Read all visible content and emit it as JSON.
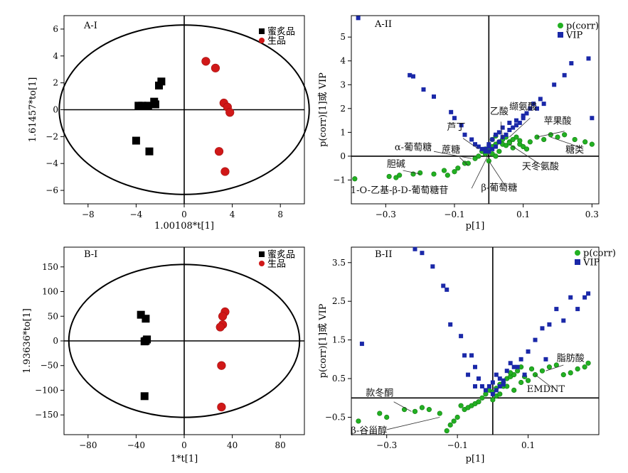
{
  "colors": {
    "honey": "#000000",
    "raw": "#d01818",
    "pcorr": "#22b022",
    "vip": "#1a28a8",
    "ellipse": "#000000",
    "axis": "#000000"
  },
  "chart_data": [
    {
      "id": "A-I",
      "type": "scatter",
      "panel_label": "A-I",
      "xlabel": "1.00108*t[1]",
      "ylabel": "1.61457*to[1]",
      "xlim": [
        -10,
        10
      ],
      "ylim": [
        -7,
        7
      ],
      "xticks": [
        -8,
        -4,
        0,
        4,
        8
      ],
      "yticks": [
        -6,
        -4,
        -2,
        0,
        2,
        4,
        6
      ],
      "xtick_labels": [
        "−8",
        "−4",
        "0",
        "4",
        "8"
      ],
      "ytick_labels": [
        "−6",
        "−4",
        "−2",
        "0",
        "2",
        "4",
        "6"
      ],
      "ellipse": {
        "rx": 10.4,
        "ry": 6.3
      },
      "legend_position": "top-right",
      "series": [
        {
          "name": "蜜炙品",
          "marker": "square",
          "color": "#000000",
          "x": [
            -3.8,
            -3.5,
            -2.1,
            -1.9,
            -2.9,
            -4.0,
            -3.0,
            -2.4,
            -2.5
          ],
          "y": [
            0.3,
            0.3,
            1.8,
            2.1,
            -3.1,
            -2.3,
            0.3,
            0.4,
            0.6
          ]
        },
        {
          "name": "生品",
          "marker": "circle",
          "color": "#d01818",
          "x": [
            1.8,
            2.6,
            3.3,
            3.6,
            3.8,
            2.9,
            3.4
          ],
          "y": [
            3.6,
            3.1,
            0.5,
            0.2,
            -0.2,
            -3.1,
            -4.6
          ]
        }
      ]
    },
    {
      "id": "A-II",
      "type": "scatter",
      "panel_label": "A-II",
      "xlabel": "p[1]",
      "ylabel": "p(corr)[1]或 VIP",
      "xlim": [
        -0.4,
        0.32
      ],
      "ylim": [
        -2,
        5.9
      ],
      "xticks": [
        -0.3,
        -0.1,
        0.1,
        0.3
      ],
      "yticks": [
        -1,
        0,
        1,
        2,
        3,
        4,
        5
      ],
      "xtick_labels": [
        "−0.3",
        "−0.1",
        "0.1",
        "0.3"
      ],
      "ytick_labels": [
        "−1",
        "0",
        "1",
        "2",
        "3",
        "4",
        "5"
      ],
      "legend_position": "top-right",
      "series": [
        {
          "name": "p(corr)",
          "marker": "circle",
          "color": "#22b022",
          "x": [
            -0.39,
            -0.29,
            -0.27,
            -0.26,
            -0.22,
            -0.2,
            -0.16,
            -0.13,
            -0.12,
            -0.1,
            -0.09,
            -0.07,
            -0.06,
            -0.04,
            -0.03,
            -0.02,
            -0.01,
            0.0,
            0.01,
            0.02,
            0.03,
            0.04,
            0.05,
            0.06,
            0.07,
            0.08,
            0.09,
            0.1,
            0.12,
            0.14,
            0.16,
            0.18,
            0.2,
            0.22,
            0.25,
            0.28,
            0.3,
            0.0,
            0.01,
            0.02,
            0.03,
            0.04,
            0.01,
            0.02,
            -0.01,
            0.05,
            0.06,
            0.07,
            0.09,
            0.11
          ],
          "y": [
            -0.95,
            -0.85,
            -0.9,
            -0.8,
            -0.75,
            -0.7,
            -0.75,
            -0.6,
            -0.8,
            -0.65,
            -0.5,
            -0.3,
            -0.3,
            -0.1,
            0.0,
            0.2,
            0.3,
            0.3,
            0.4,
            0.5,
            0.6,
            0.7,
            0.8,
            0.6,
            0.7,
            0.8,
            0.5,
            0.4,
            0.6,
            0.8,
            0.7,
            0.9,
            0.8,
            0.9,
            0.7,
            0.6,
            0.5,
            -0.2,
            0.1,
            0.0,
            0.2,
            0.5,
            0.7,
            0.85,
            0.1,
            0.45,
            0.55,
            0.35,
            0.65,
            0.3
          ]
        },
        {
          "name": "VIP",
          "marker": "square",
          "color": "#1a28a8",
          "x": [
            -0.38,
            -0.23,
            -0.22,
            -0.19,
            -0.16,
            -0.11,
            -0.1,
            -0.08,
            -0.07,
            -0.05,
            -0.04,
            -0.03,
            -0.02,
            -0.01,
            0.0,
            0.01,
            0.02,
            0.03,
            0.04,
            0.05,
            0.06,
            0.07,
            0.08,
            0.09,
            0.1,
            0.11,
            0.12,
            0.13,
            0.15,
            0.16,
            0.19,
            0.22,
            0.24,
            0.29,
            0.3,
            0.0,
            0.01,
            0.02,
            0.03,
            -0.01,
            0.0,
            0.04,
            0.06,
            0.08,
            0.1,
            0.14
          ],
          "y": [
            5.8,
            3.4,
            3.35,
            2.8,
            2.5,
            1.85,
            1.6,
            1.3,
            0.9,
            0.7,
            0.5,
            0.4,
            0.3,
            0.2,
            0.2,
            0.3,
            0.4,
            0.6,
            0.8,
            0.9,
            1.1,
            1.2,
            1.3,
            1.4,
            1.6,
            1.8,
            2.0,
            2.2,
            2.4,
            2.2,
            3.0,
            3.4,
            3.9,
            4.1,
            1.6,
            0.5,
            0.7,
            0.9,
            1.0,
            0.3,
            0.4,
            1.2,
            1.4,
            1.5,
            1.7,
            2.0
          ]
        }
      ],
      "annotations": [
        {
          "text": "乙酸",
          "x": 0.03,
          "y": 1.75
        },
        {
          "text": "缬氨酸",
          "x": 0.1,
          "y": 1.95
        },
        {
          "text": "苹果酸",
          "x": 0.2,
          "y": 1.35
        },
        {
          "text": "芦丁",
          "x": -0.095,
          "y": 1.1
        },
        {
          "text": "α-葡萄糖",
          "x": -0.22,
          "y": 0.25
        },
        {
          "text": "蔗糖",
          "x": -0.11,
          "y": 0.15
        },
        {
          "text": "糖类",
          "x": 0.25,
          "y": 0.15
        },
        {
          "text": "胆碱",
          "x": -0.27,
          "y": -0.45
        },
        {
          "text": "天冬氨酸",
          "x": 0.15,
          "y": -0.55
        },
        {
          "text": "1-O-乙基-β-D-葡萄糖苷",
          "x": -0.26,
          "y": -1.55
        },
        {
          "text": "β-葡萄糖",
          "x": 0.03,
          "y": -1.45
        }
      ]
    },
    {
      "id": "B-I",
      "type": "scatter",
      "panel_label": "B-I",
      "xlabel": "1*t[1]",
      "ylabel": "1.93636*to[1]",
      "xlim": [
        -100,
        100
      ],
      "ylim": [
        -190,
        190
      ],
      "xticks": [
        -80,
        -40,
        0,
        40,
        80
      ],
      "yticks": [
        -150,
        -100,
        -50,
        0,
        50,
        100,
        150
      ],
      "xtick_labels": [
        "−80",
        "−40",
        "0",
        "40",
        "80"
      ],
      "ytick_labels": [
        "−150",
        "−100",
        "−50",
        "0",
        "50",
        "100",
        "150"
      ],
      "ellipse": {
        "rx": 96,
        "ry": 155
      },
      "legend_position": "top-right",
      "series": [
        {
          "name": "蜜炙品",
          "marker": "square",
          "color": "#000000",
          "x": [
            -36,
            -32,
            -31,
            -32,
            -33,
            -33
          ],
          "y": [
            53,
            45,
            3,
            0,
            -1,
            -112
          ]
        },
        {
          "name": "生品",
          "marker": "circle",
          "color": "#d01818",
          "x": [
            34,
            32,
            32,
            30,
            31,
            31
          ],
          "y": [
            59,
            50,
            33,
            28,
            -50,
            -134
          ]
        }
      ]
    },
    {
      "id": "B-II",
      "type": "scatter",
      "panel_label": "B-II",
      "xlabel": "p[1]",
      "ylabel": "p(corr)[1]或 VIP",
      "xlim": [
        -0.4,
        0.3
      ],
      "ylim": [
        -0.95,
        3.9
      ],
      "xticks": [
        -0.3,
        -0.1,
        0.1
      ],
      "yticks": [
        -0.5,
        0.5,
        1.5,
        2.5,
        3.5
      ],
      "xtick_labels": [
        "−0.3",
        "−0.1",
        "0.1"
      ],
      "ytick_labels": [
        "−0.5",
        "0.5",
        "1.5",
        "2.5",
        "3.5"
      ],
      "legend_position": "top-right",
      "series": [
        {
          "name": "p(corr)",
          "marker": "circle",
          "color": "#22b022",
          "x": [
            -0.38,
            -0.32,
            -0.3,
            -0.25,
            -0.22,
            -0.2,
            -0.18,
            -0.15,
            -0.13,
            -0.12,
            -0.1,
            -0.08,
            -0.07,
            -0.06,
            -0.05,
            -0.04,
            -0.03,
            -0.02,
            -0.01,
            0.0,
            0.01,
            0.02,
            0.03,
            0.04,
            0.05,
            0.06,
            0.07,
            0.08,
            0.09,
            0.1,
            0.12,
            0.14,
            0.16,
            0.18,
            0.2,
            0.22,
            0.24,
            0.26,
            0.27,
            0.0,
            0.01,
            0.02,
            0.03,
            -0.11,
            -0.09,
            0.04,
            0.06,
            0.11,
            0.05,
            0.08
          ],
          "y": [
            -0.6,
            -0.4,
            -0.5,
            -0.3,
            -0.35,
            -0.25,
            -0.3,
            -0.4,
            -0.85,
            -0.7,
            -0.5,
            -0.3,
            -0.25,
            -0.2,
            -0.15,
            -0.1,
            0.0,
            0.1,
            0.2,
            0.15,
            0.25,
            0.35,
            0.4,
            0.5,
            0.55,
            0.6,
            0.7,
            0.8,
            0.55,
            0.45,
            0.6,
            0.7,
            0.8,
            0.85,
            0.6,
            0.65,
            0.75,
            0.8,
            0.9,
            -0.05,
            0.05,
            0.1,
            0.3,
            -0.6,
            -0.2,
            0.3,
            0.2,
            0.75,
            0.65,
            0.4
          ]
        },
        {
          "name": "VIP",
          "marker": "square",
          "color": "#1a28a8",
          "x": [
            -0.37,
            -0.22,
            -0.2,
            -0.17,
            -0.14,
            -0.13,
            -0.12,
            -0.09,
            -0.08,
            -0.06,
            -0.05,
            -0.04,
            -0.03,
            -0.02,
            -0.01,
            0.0,
            0.01,
            0.02,
            0.03,
            0.04,
            0.05,
            0.06,
            0.08,
            0.1,
            0.12,
            0.14,
            0.16,
            0.18,
            0.2,
            0.22,
            0.24,
            0.26,
            0.27,
            -0.07,
            -0.05,
            0.0,
            0.01,
            0.02,
            0.03,
            0.07,
            0.09,
            0.15
          ],
          "y": [
            1.4,
            3.85,
            3.75,
            3.4,
            2.9,
            2.8,
            1.9,
            1.6,
            1.1,
            1.1,
            0.8,
            0.5,
            0.3,
            0.2,
            0.3,
            0.4,
            0.6,
            0.5,
            0.45,
            0.7,
            0.9,
            0.8,
            1.0,
            1.2,
            1.5,
            1.8,
            1.9,
            2.3,
            2.0,
            2.6,
            2.3,
            2.6,
            2.7,
            0.6,
            0.3,
            0.1,
            0.2,
            0.3,
            0.35,
            0.8,
            0.6,
            1.0
          ]
        }
      ],
      "annotations": [
        {
          "text": "脂肪酸",
          "x": 0.22,
          "y": 0.95
        },
        {
          "text": "EMDNT",
          "x": 0.15,
          "y": 0.15
        },
        {
          "text": "款冬酮",
          "x": -0.32,
          "y": 0.05
        },
        {
          "text": "β-谷甾醇",
          "x": -0.35,
          "y": -0.92
        }
      ]
    }
  ]
}
